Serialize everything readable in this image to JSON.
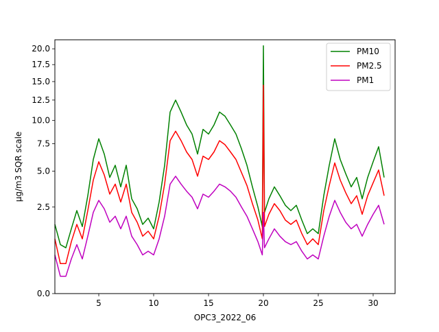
{
  "chart_data": {
    "type": "line",
    "title": "",
    "xlabel": "OPC3_2022_06",
    "ylabel": "µg/m3 SQR scale",
    "y_scale": "sqrt",
    "xlim": [
      1,
      32
    ],
    "ylim": [
      0,
      21.5
    ],
    "grid": false,
    "legend_position": "top-right",
    "xticks": [
      5,
      10,
      15,
      20,
      25,
      30
    ],
    "xtick_labels": [
      "5",
      "10",
      "15",
      "20",
      "25",
      "30"
    ],
    "yticks": [
      0.0,
      2.5,
      5.0,
      7.5,
      10.0,
      12.5,
      15.0,
      17.5,
      20.0
    ],
    "ytick_labels": [
      "0.0",
      "2.5",
      "5.0",
      "7.5",
      "10.0",
      "12.5",
      "15.0",
      "17.5",
      "20.0"
    ],
    "series": [
      {
        "name": "PM10",
        "color": "#008000",
        "x": [
          1.0,
          1.5,
          2.0,
          2.5,
          3.0,
          3.5,
          4.0,
          4.5,
          5.0,
          5.5,
          6.0,
          6.5,
          7.0,
          7.5,
          8.0,
          8.5,
          9.0,
          9.5,
          10.0,
          10.5,
          11.0,
          11.5,
          12.0,
          12.5,
          13.0,
          13.5,
          14.0,
          14.5,
          15.0,
          15.5,
          16.0,
          16.5,
          17.0,
          17.5,
          18.0,
          18.5,
          19.0,
          19.5,
          19.9,
          20.0,
          20.1,
          20.5,
          21.0,
          21.5,
          22.0,
          22.5,
          23.0,
          23.5,
          24.0,
          24.5,
          25.0,
          25.5,
          26.0,
          26.5,
          27.0,
          27.5,
          28.0,
          28.5,
          29.0,
          29.5,
          30.0,
          30.5,
          31.0
        ],
        "values": [
          1.6,
          0.8,
          0.7,
          1.4,
          2.3,
          1.5,
          3.2,
          6.0,
          8.0,
          6.5,
          4.5,
          5.5,
          3.8,
          5.5,
          3.0,
          2.4,
          1.6,
          1.9,
          1.4,
          2.8,
          5.5,
          11.0,
          12.5,
          11.0,
          9.5,
          8.5,
          6.5,
          9.0,
          8.5,
          9.5,
          11.0,
          10.5,
          9.5,
          8.5,
          7.0,
          5.5,
          3.8,
          2.5,
          1.5,
          20.5,
          2.2,
          3.0,
          3.8,
          3.2,
          2.6,
          2.3,
          2.6,
          1.8,
          1.2,
          1.4,
          1.2,
          3.2,
          5.5,
          8.0,
          6.0,
          4.8,
          3.8,
          4.5,
          3.0,
          4.5,
          5.8,
          7.2,
          4.5
        ]
      },
      {
        "name": "PM2.5",
        "color": "#ff0000",
        "x": [
          1.0,
          1.5,
          2.0,
          2.5,
          3.0,
          3.5,
          4.0,
          4.5,
          5.0,
          5.5,
          6.0,
          6.5,
          7.0,
          7.5,
          8.0,
          8.5,
          9.0,
          9.5,
          10.0,
          10.5,
          11.0,
          11.5,
          12.0,
          12.5,
          13.0,
          13.5,
          14.0,
          14.5,
          15.0,
          15.5,
          16.0,
          16.5,
          17.0,
          17.5,
          18.0,
          18.5,
          19.0,
          19.5,
          19.9,
          20.0,
          20.1,
          20.5,
          21.0,
          21.5,
          22.0,
          22.5,
          23.0,
          23.5,
          24.0,
          24.5,
          25.0,
          25.5,
          26.0,
          26.5,
          27.0,
          27.5,
          28.0,
          28.5,
          29.0,
          29.5,
          30.0,
          30.5,
          31.0
        ],
        "values": [
          1.0,
          0.3,
          0.3,
          0.9,
          1.6,
          1.0,
          2.3,
          4.3,
          5.8,
          4.7,
          3.3,
          4.0,
          2.8,
          4.0,
          2.2,
          1.7,
          1.1,
          1.3,
          1.0,
          2.0,
          4.0,
          7.8,
          8.8,
          7.8,
          6.7,
          6.0,
          4.6,
          6.3,
          6.0,
          6.7,
          7.8,
          7.4,
          6.7,
          6.0,
          4.9,
          3.9,
          2.7,
          1.8,
          1.0,
          14.5,
          1.5,
          2.1,
          2.7,
          2.3,
          1.8,
          1.6,
          1.8,
          1.2,
          0.8,
          1.0,
          0.8,
          2.3,
          3.9,
          5.7,
          4.3,
          3.4,
          2.7,
          3.2,
          2.1,
          3.2,
          4.1,
          5.1,
          3.2
        ]
      },
      {
        "name": "PM1",
        "color": "#bf00bf",
        "x": [
          1.0,
          1.5,
          2.0,
          2.5,
          3.0,
          3.5,
          4.0,
          4.5,
          5.0,
          5.5,
          6.0,
          6.5,
          7.0,
          7.5,
          8.0,
          8.5,
          9.0,
          9.5,
          10.0,
          10.5,
          11.0,
          11.5,
          12.0,
          12.5,
          13.0,
          13.5,
          14.0,
          14.5,
          15.0,
          15.5,
          16.0,
          16.5,
          17.0,
          17.5,
          18.0,
          18.5,
          19.0,
          19.5,
          19.9,
          20.0,
          20.1,
          20.5,
          21.0,
          21.5,
          22.0,
          22.5,
          23.0,
          23.5,
          24.0,
          24.5,
          25.0,
          25.5,
          26.0,
          26.5,
          27.0,
          27.5,
          28.0,
          28.5,
          29.0,
          29.5,
          30.0,
          30.5,
          31.0
        ],
        "values": [
          0.5,
          0.1,
          0.1,
          0.4,
          0.8,
          0.4,
          1.1,
          2.2,
          2.9,
          2.4,
          1.7,
          2.0,
          1.4,
          2.0,
          1.1,
          0.8,
          0.5,
          0.6,
          0.5,
          1.0,
          2.0,
          4.0,
          4.6,
          4.0,
          3.5,
          3.1,
          2.4,
          3.3,
          3.1,
          3.5,
          4.0,
          3.8,
          3.5,
          3.1,
          2.5,
          2.0,
          1.4,
          0.9,
          0.5,
          2.2,
          0.7,
          1.0,
          1.4,
          1.1,
          0.9,
          0.8,
          0.9,
          0.6,
          0.4,
          0.5,
          0.4,
          1.1,
          2.0,
          2.9,
          2.2,
          1.7,
          1.4,
          1.6,
          1.1,
          1.6,
          2.1,
          2.6,
          1.6
        ]
      }
    ]
  }
}
